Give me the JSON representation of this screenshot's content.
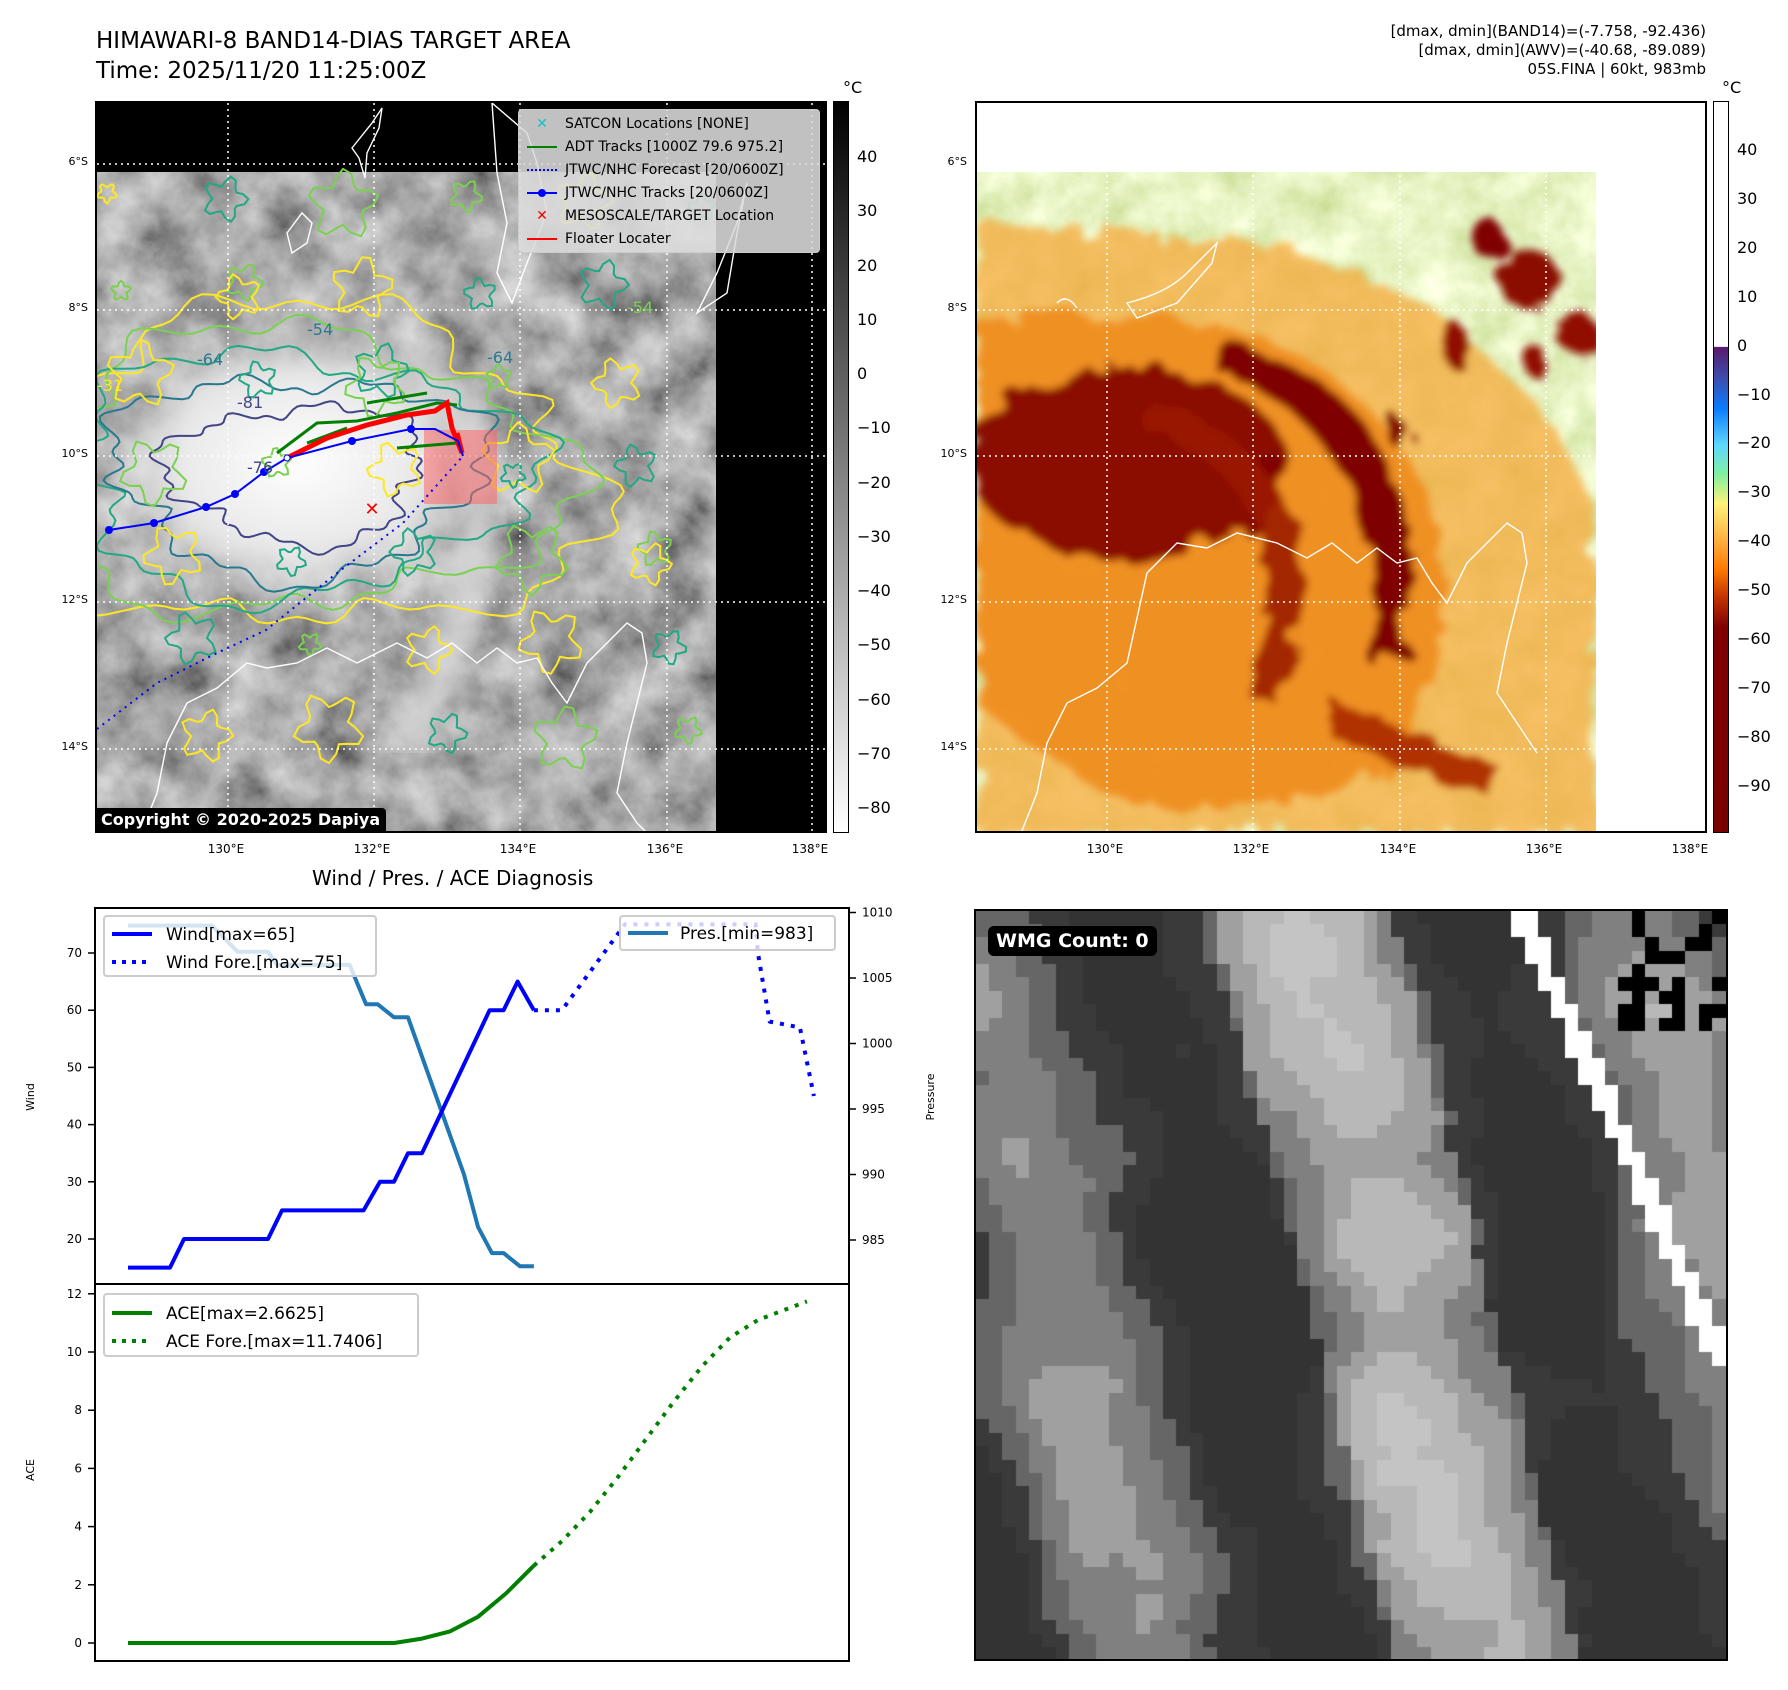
{
  "header": {
    "title": "HIMAWARI-8 BAND14-DIAS TARGET AREA",
    "time": "Time: 2025/11/20 11:25:00Z",
    "stats_band14": "[dmax, dmin](BAND14)=(-7.758, -92.436)",
    "stats_awv": "[dmax, dmin](AWV)=(-40.68, -89.089)",
    "storm": "05S.FINA | 60kt, 983mb"
  },
  "maps": {
    "lat_ticks": [
      "6°S",
      "8°S",
      "10°S",
      "12°S",
      "14°S"
    ],
    "lon_ticks": [
      "130°E",
      "132°E",
      "134°E",
      "136°E",
      "138°E"
    ],
    "unit": "°C",
    "colorbar1_ticks": [
      "40",
      "30",
      "20",
      "10",
      "0",
      "−10",
      "−20",
      "−30",
      "−40",
      "−50",
      "−60",
      "−70",
      "−80"
    ],
    "colorbar2_ticks": [
      "40",
      "30",
      "20",
      "10",
      "0",
      "−10",
      "−20",
      "−30",
      "−40",
      "−50",
      "−60",
      "−70",
      "−80",
      "−90"
    ],
    "contour_labels": [
      "-54",
      "-64",
      "-81",
      "-76",
      "-31",
      "-64",
      "-54"
    ],
    "copyright": "Copyright © 2020-2025 Dapiya",
    "legend": [
      {
        "label": "SATCON Locations [NONE]",
        "icon": "x-marker-cyan",
        "color": "#17becf"
      },
      {
        "label": "ADT Tracks [1000Z 79.6 975.2]",
        "icon": "solid-line",
        "color": "#008000"
      },
      {
        "label": "JTWC/NHC Forecast [20/0600Z]",
        "icon": "dotted-line",
        "color": "#0000ff"
      },
      {
        "label": "JTWC/NHC Tracks [20/0600Z]",
        "icon": "line-with-dot",
        "color": "#0000ff"
      },
      {
        "label": "MESOSCALE/TARGET Location",
        "icon": "x-marker-red",
        "color": "#ff0000"
      },
      {
        "label": "Floater Locater",
        "icon": "solid-line",
        "color": "#ff0000"
      }
    ]
  },
  "diagnosis": {
    "title": "Wind / Pres. / ACE Diagnosis"
  },
  "wmg": {
    "label": "WMG Count: 0"
  },
  "chart_data": [
    {
      "type": "line",
      "title": "Wind / Pres. / ACE Diagnosis",
      "xlabel": "",
      "ylabel": "Wind",
      "ylabel_right": "Pressure",
      "ylim": [
        12.1,
        77.9
      ],
      "ylim_right": [
        981.6,
        1010.3
      ],
      "xlim": [
        -14,
        309
      ],
      "yticks": [
        20,
        30,
        40,
        50,
        60,
        70
      ],
      "yticks_right": [
        985,
        990,
        995,
        1000,
        1005,
        1010
      ],
      "series": [
        {
          "name": "Wind[max=65]",
          "axis": "left",
          "style": "solid",
          "color": "#0000ff",
          "x": [
            0,
            18,
            24,
            60,
            66,
            101,
            108,
            114,
            120,
            126,
            155,
            161,
            167,
            174
          ],
          "y": [
            15,
            15,
            20,
            20,
            25,
            25,
            30,
            30,
            35,
            35,
            60,
            60,
            65,
            60
          ]
        },
        {
          "name": "Wind Fore.[max=75]",
          "axis": "left",
          "style": "dotted",
          "color": "#0000ff",
          "x": [
            174,
            186,
            213,
            269,
            270,
            275,
            288,
            294
          ],
          "y": [
            60,
            60,
            75,
            75,
            70,
            58,
            57,
            45
          ]
        },
        {
          "name": "Pres.[min=983]",
          "axis": "right",
          "style": "solid",
          "color": "#1f77b4",
          "x": [
            0,
            36,
            47,
            60,
            64,
            95,
            102,
            107,
            114,
            120,
            144,
            150,
            156,
            161,
            168,
            174
          ],
          "y": [
            1009,
            1009,
            1007,
            1007,
            1006,
            1006,
            1003,
            1003,
            1002,
            1002,
            990,
            986,
            984,
            984,
            983,
            983
          ]
        }
      ],
      "legend_placement": [
        "upper-left",
        "upper-right"
      ]
    },
    {
      "type": "line",
      "ylabel": "ACE",
      "ylim": [
        -0.62,
        12.34
      ],
      "xlim": [
        -14,
        309
      ],
      "yticks": [
        0,
        2,
        4,
        6,
        8,
        10,
        12
      ],
      "series": [
        {
          "name": "ACE[max=2.6625]",
          "style": "solid",
          "color": "#008000",
          "x": [
            0,
            114,
            126,
            138,
            150,
            162,
            174
          ],
          "y": [
            0,
            0,
            0.15,
            0.4,
            0.9,
            1.7,
            2.66
          ]
        },
        {
          "name": "ACE Fore.[max=11.7406]",
          "style": "dotted",
          "color": "#008000",
          "x": [
            174,
            186,
            198,
            210,
            222,
            234,
            246,
            258,
            270,
            291
          ],
          "y": [
            2.66,
            3.5,
            4.5,
            5.7,
            7.0,
            8.3,
            9.5,
            10.5,
            11.1,
            11.74
          ]
        }
      ],
      "legend_placement": "upper-left"
    }
  ]
}
